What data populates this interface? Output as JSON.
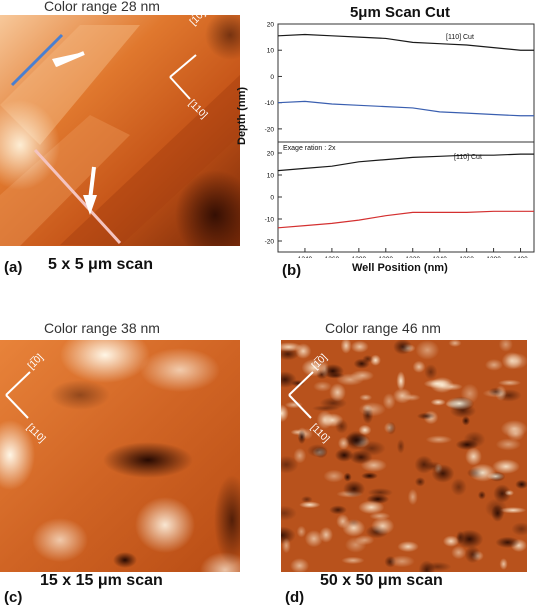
{
  "panel_a": {
    "caption": "Color range 28 nm",
    "letter": "(a)",
    "scan": "5  x 5 μm scan",
    "dir_110": "[110]",
    "dir_1bar10": "[1̅0]"
  },
  "panel_b": {
    "letter": "(b)",
    "title": "5μm Scan Cut"
  },
  "panel_c": {
    "caption": "Color range 38 nm",
    "letter": "(c)",
    "scan": "15  x 15 μm scan",
    "dir_110": "[110]",
    "dir_1bar10": "[1̅0]"
  },
  "panel_d": {
    "caption": "Color range 46 nm",
    "letter": "(d)",
    "scan": "50  x 50 μm scan",
    "dir_110": "[110]",
    "dir_1bar10": "[1̅0]"
  },
  "chart_data": [
    {
      "type": "line",
      "panel": "top",
      "annotation": "[110] Cut",
      "ylabel": "Depth (nm)",
      "xlim": [
        1220,
        1410
      ],
      "ylim": [
        -25,
        20
      ],
      "y_ticks": [
        20,
        10,
        0,
        -10,
        -20
      ],
      "series": [
        {
          "color": "#1a1a1a",
          "x": [
            1220,
            1240,
            1260,
            1280,
            1300,
            1320,
            1340,
            1360,
            1380,
            1400,
            1410
          ],
          "y": [
            15.5,
            16,
            15.5,
            15,
            14.5,
            13,
            12.5,
            12,
            11,
            10,
            10
          ]
        },
        {
          "color": "#3a5fb0",
          "x": [
            1220,
            1240,
            1260,
            1280,
            1300,
            1320,
            1340,
            1360,
            1380,
            1400,
            1410
          ],
          "y": [
            -10,
            -9.5,
            -10.5,
            -11,
            -11.5,
            -12,
            -13.5,
            -14,
            -14.5,
            -15,
            -15
          ]
        }
      ]
    },
    {
      "type": "line",
      "panel": "bottom",
      "annotation": "[110] Cut",
      "note": "Exage ration : 2x",
      "xlabel": "Well Position (nm)",
      "xlim": [
        1220,
        1410
      ],
      "ylim": [
        -25,
        25
      ],
      "x_ticks": [
        1240,
        1260,
        1280,
        1300,
        1320,
        1340,
        1360,
        1380,
        1400
      ],
      "y_ticks": [
        20,
        10,
        0,
        -10,
        -20
      ],
      "series": [
        {
          "color": "#1a1a1a",
          "x": [
            1220,
            1240,
            1260,
            1280,
            1300,
            1320,
            1340,
            1360,
            1380,
            1400,
            1410
          ],
          "y": [
            12,
            13,
            14,
            16,
            17,
            18,
            18.5,
            19,
            19,
            19.5,
            19.5
          ]
        },
        {
          "color": "#d43030",
          "x": [
            1220,
            1240,
            1260,
            1280,
            1300,
            1320,
            1340,
            1360,
            1380,
            1400,
            1410
          ],
          "y": [
            -14,
            -13,
            -12,
            -10.5,
            -8.5,
            -7,
            -7,
            -7,
            -6.5,
            -6.5,
            -6.5
          ]
        }
      ]
    }
  ]
}
